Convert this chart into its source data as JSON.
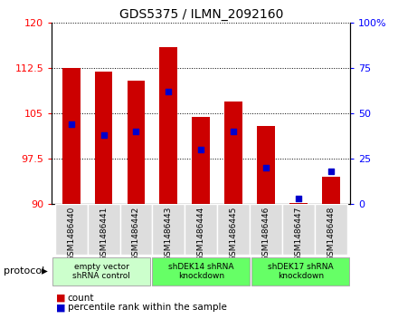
{
  "title": "GDS5375 / ILMN_2092160",
  "samples": [
    "GSM1486440",
    "GSM1486441",
    "GSM1486442",
    "GSM1486443",
    "GSM1486444",
    "GSM1486445",
    "GSM1486446",
    "GSM1486447",
    "GSM1486448"
  ],
  "counts": [
    112.5,
    112.0,
    110.5,
    116.0,
    104.5,
    107.0,
    103.0,
    90.2,
    94.5
  ],
  "percentile_ranks_pct": [
    44,
    38,
    40,
    62,
    30,
    40,
    20,
    3,
    18
  ],
  "ylim_left": [
    90,
    120
  ],
  "ylim_right": [
    0,
    100
  ],
  "yticks_left": [
    90,
    97.5,
    105,
    112.5,
    120
  ],
  "yticks_right": [
    0,
    25,
    50,
    75,
    100
  ],
  "bar_color": "#cc0000",
  "percentile_color": "#0000cc",
  "bar_bottom": 90,
  "groups": [
    {
      "label": "empty vector\nshRNA control",
      "start": 0,
      "end": 3,
      "color": "#ccffcc"
    },
    {
      "label": "shDEK14 shRNA\nknockdown",
      "start": 3,
      "end": 6,
      "color": "#66ff66"
    },
    {
      "label": "shDEK17 shRNA\nknockdown",
      "start": 6,
      "end": 9,
      "color": "#66ff66"
    }
  ],
  "legend_count_label": "count",
  "legend_percentile_label": "percentile rank within the sample",
  "protocol_label": "protocol",
  "tick_area_color": "#dddddd",
  "grid_color": "#000000",
  "title_fontsize": 10,
  "axis_fontsize": 8,
  "tick_fontsize": 7
}
